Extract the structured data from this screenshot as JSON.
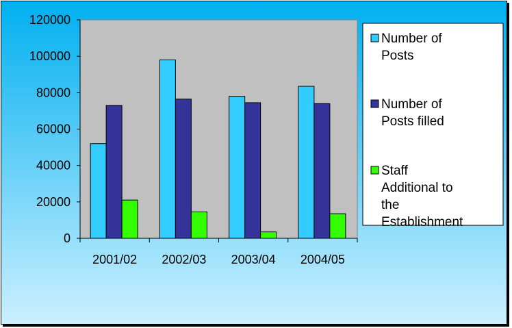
{
  "chart_data": {
    "type": "bar",
    "categories": [
      "2001/02",
      "2002/03",
      "2003/04",
      "2004/05"
    ],
    "series": [
      {
        "name": "Number of Posts",
        "color": "#33CCFF",
        "values": [
          52000,
          98000,
          78000,
          83500
        ]
      },
      {
        "name": "Number of Posts filled",
        "color": "#333399",
        "values": [
          73000,
          76500,
          74500,
          74000
        ]
      },
      {
        "name": "Staff Additional to the Establishment",
        "color": "#33FF00",
        "values": [
          21000,
          14500,
          3500,
          13500
        ]
      }
    ],
    "ylim": [
      0,
      120000
    ],
    "yticks": [
      0,
      20000,
      40000,
      60000,
      80000,
      100000,
      120000
    ],
    "grid": false,
    "legend_position": "right",
    "colors": {
      "plot_area": "#C0C0C0",
      "background_top": "#00B0F0",
      "background_bottom": "#CCF0FF"
    }
  }
}
